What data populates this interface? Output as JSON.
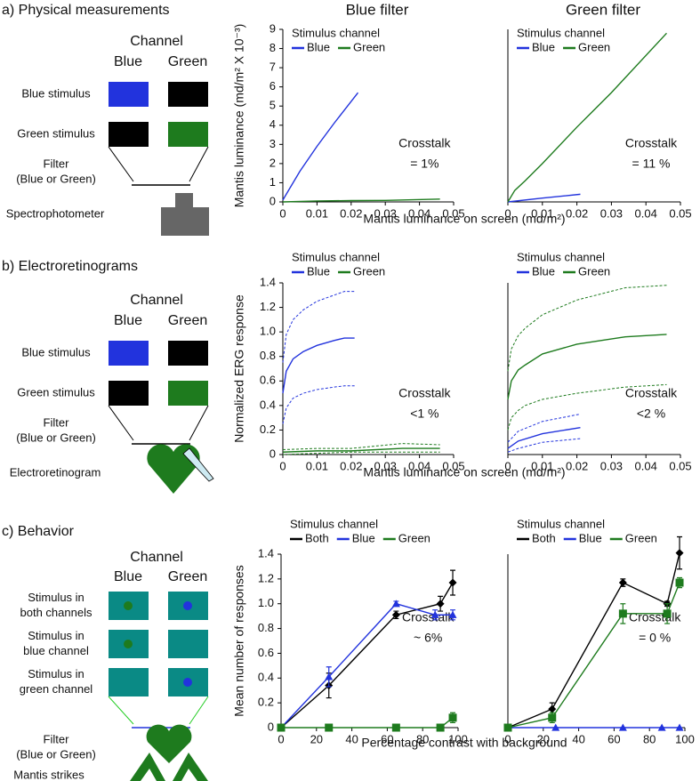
{
  "panels": [
    {
      "label": "a) Physical measurements",
      "channel": "Channel",
      "columns": [
        "Blue",
        "Green"
      ],
      "rows": [
        [
          "Blue stimulus"
        ],
        [
          "Green stimulus"
        ]
      ],
      "filter": [
        "Filter",
        "(Blue or Green)"
      ],
      "device": "Spectrophotometer"
    },
    {
      "label": "b) Electroretinograms",
      "channel": "Channel",
      "columns": [
        "Blue",
        "Green"
      ],
      "rows": [
        [
          "Blue stimulus"
        ],
        [
          "Green stimulus"
        ]
      ],
      "filter": [
        "Filter",
        "(Blue or Green)"
      ],
      "device": "Electroretinogram"
    },
    {
      "label": "c) Behavior",
      "channel": "Channel",
      "columns": [
        "Blue",
        "Green"
      ],
      "rows": [
        [
          "Stimulus in",
          "both channels"
        ],
        [
          "Stimulus in",
          "blue channel"
        ],
        [
          "Stimulus in",
          "green channel"
        ]
      ],
      "filter": [
        "Filter",
        "(Blue or Green)"
      ],
      "device": "Mantis strikes"
    }
  ],
  "chart_data": [
    {
      "type": "line",
      "title": "Blue filter",
      "title_color": "#2233dd",
      "ylabel": "Mantis luminance (md/m² X 10⁻³)",
      "xlabel": "Mantis luminance on screen (md/m²)",
      "xlim": [
        0,
        0.05
      ],
      "xticks": [
        0,
        0.01,
        0.02,
        0.03,
        0.04,
        0.05
      ],
      "ylim": [
        0,
        9
      ],
      "yticks": [
        0,
        1,
        2,
        3,
        4,
        5,
        6,
        7,
        8,
        9
      ],
      "legend_title": "Stimulus channel",
      "annotation": [
        "Crosstalk",
        "= 1%"
      ],
      "series": [
        {
          "name": "Blue",
          "color": "#2233dd",
          "x": [
            0,
            0.002,
            0.005,
            0.01,
            0.015,
            0.022
          ],
          "values": [
            0.1,
            0.7,
            1.6,
            2.9,
            4.1,
            5.7
          ]
        },
        {
          "name": "Green",
          "color": "#1e7b1e",
          "x": [
            0,
            0.01,
            0.02,
            0.03,
            0.046
          ],
          "values": [
            0,
            0.05,
            0.07,
            0.08,
            0.15
          ]
        }
      ]
    },
    {
      "type": "line",
      "title": "Green filter",
      "title_color": "#1e7b1e",
      "xlim": [
        0,
        0.05
      ],
      "xticks": [
        0,
        0.01,
        0.02,
        0.03,
        0.04,
        0.05
      ],
      "ylim": [
        0,
        9
      ],
      "legend_title": "Stimulus channel",
      "annotation": [
        "Crosstalk",
        "= 11 %"
      ],
      "series": [
        {
          "name": "Blue",
          "color": "#2233dd",
          "x": [
            0,
            0.01,
            0.021
          ],
          "values": [
            0,
            0.2,
            0.4
          ]
        },
        {
          "name": "Green",
          "color": "#1e7b1e",
          "x": [
            0,
            0.002,
            0.005,
            0.01,
            0.02,
            0.03,
            0.046
          ],
          "values": [
            0,
            0.6,
            1.1,
            2.0,
            3.9,
            5.7,
            8.8
          ]
        }
      ]
    },
    {
      "type": "line",
      "ylabel": "Normalized ERG response",
      "xlabel": "Mantis luminance on screen (md/m²)",
      "xlim": [
        0,
        0.05
      ],
      "xticks": [
        0,
        0.01,
        0.02,
        0.03,
        0.04,
        0.05
      ],
      "ylim": [
        0,
        1.4
      ],
      "yticks": [
        0,
        0.2,
        0.4,
        0.6,
        0.8,
        {
          "value": 1,
          "label": "1.0"
        },
        1.2,
        1.4
      ],
      "legend_title": "Stimulus channel",
      "annotation": [
        "Crosstalk",
        "<1 %"
      ],
      "series": [
        {
          "name": "Blue",
          "color": "#2233dd",
          "x": [
            0,
            0.001,
            0.003,
            0.006,
            0.01,
            0.015,
            0.018,
            0.021
          ],
          "values": [
            0.5,
            0.68,
            0.78,
            0.84,
            0.89,
            0.93,
            0.95,
            0.95
          ],
          "upper": [
            0.75,
            0.98,
            1.1,
            1.18,
            1.25,
            1.3,
            1.33,
            1.33
          ],
          "lower": [
            0.25,
            0.38,
            0.46,
            0.5,
            0.53,
            0.55,
            0.56,
            0.56
          ]
        },
        {
          "name": "Green",
          "color": "#1e7b1e",
          "x": [
            0,
            0.01,
            0.02,
            0.035,
            0.046
          ],
          "values": [
            0.02,
            0.03,
            0.03,
            0.05,
            0.05
          ],
          "upper": [
            0.04,
            0.05,
            0.05,
            0.09,
            0.08
          ],
          "lower": [
            0,
            0.01,
            0.02,
            0.02,
            0.02
          ]
        }
      ]
    },
    {
      "type": "line",
      "xlim": [
        0,
        0.05
      ],
      "xticks": [
        0,
        0.01,
        0.02,
        0.03,
        0.04,
        0.05
      ],
      "ylim": [
        0,
        1.4
      ],
      "legend_title": "Stimulus channel",
      "annotation": [
        "Crosstalk",
        "<2 %"
      ],
      "series": [
        {
          "name": "Blue",
          "color": "#2233dd",
          "x": [
            0,
            0.003,
            0.01,
            0.021
          ],
          "values": [
            0.05,
            0.11,
            0.17,
            0.22
          ],
          "upper": [
            0.1,
            0.19,
            0.27,
            0.33
          ],
          "lower": [
            0.02,
            0.05,
            0.1,
            0.13
          ]
        },
        {
          "name": "Green",
          "color": "#1e7b1e",
          "x": [
            0,
            0.001,
            0.003,
            0.005,
            0.01,
            0.02,
            0.034,
            0.046
          ],
          "values": [
            0.45,
            0.6,
            0.69,
            0.73,
            0.82,
            0.9,
            0.96,
            0.98
          ],
          "upper": [
            0.68,
            0.86,
            0.97,
            1.03,
            1.14,
            1.26,
            1.36,
            1.38
          ],
          "lower": [
            0.2,
            0.3,
            0.36,
            0.4,
            0.45,
            0.5,
            0.55,
            0.57
          ]
        }
      ]
    },
    {
      "type": "line",
      "ylabel": "Mean number of responses",
      "xlabel": "Percentage contrast with background",
      "xlim": [
        0,
        100
      ],
      "xticks": [
        0,
        20,
        40,
        60,
        80,
        100
      ],
      "ylim": [
        0,
        1.4
      ],
      "yticks": [
        0,
        0.2,
        0.4,
        0.6,
        0.8,
        {
          "value": 1,
          "label": "1.0"
        },
        1.2,
        1.4
      ],
      "legend_title": "Stimulus channel",
      "annotation": [
        "Crosstalk",
        "~ 6%"
      ],
      "series": [
        {
          "name": "Both",
          "color": "#000000",
          "marker": "diamond",
          "x": [
            0,
            27,
            65,
            90,
            97
          ],
          "values": [
            0,
            0.34,
            0.91,
            1.0,
            1.17
          ],
          "errors": [
            0,
            0.1,
            0.03,
            0.06,
            0.1
          ]
        },
        {
          "name": "Blue",
          "color": "#2233dd",
          "marker": "triangle",
          "x": [
            0,
            27,
            65,
            87,
            97
          ],
          "values": [
            0,
            0.41,
            1.0,
            0.91,
            0.91
          ],
          "errors": [
            0,
            0.08,
            0.02,
            0.04,
            0.04
          ]
        },
        {
          "name": "Green",
          "color": "#1e7b1e",
          "marker": "square",
          "x": [
            0,
            27,
            65,
            90,
            97
          ],
          "values": [
            0,
            0,
            0,
            0,
            0.08
          ],
          "errors": [
            0,
            0,
            0,
            0,
            0.04
          ]
        }
      ]
    },
    {
      "type": "line",
      "xlim": [
        0,
        100
      ],
      "xticks": [
        0,
        20,
        40,
        60,
        80,
        100
      ],
      "ylim": [
        0,
        1.4
      ],
      "legend_title": "Stimulus channel",
      "annotation": [
        "Crosstalk",
        "= 0 %"
      ],
      "series": [
        {
          "name": "Both",
          "color": "#000000",
          "marker": "diamond",
          "x": [
            0,
            25,
            65,
            90,
            97
          ],
          "values": [
            0,
            0.15,
            1.17,
            1.0,
            1.41
          ],
          "errors": [
            0,
            0.05,
            0.03,
            0.02,
            0.13
          ]
        },
        {
          "name": "Blue",
          "color": "#2233dd",
          "marker": "triangle",
          "x": [
            0,
            27,
            65,
            87,
            97
          ],
          "values": [
            0,
            0,
            0,
            0,
            0
          ],
          "errors": [
            0,
            0,
            0,
            0,
            0
          ]
        },
        {
          "name": "Green",
          "color": "#1e7b1e",
          "marker": "square",
          "x": [
            0,
            25,
            65,
            90,
            97
          ],
          "values": [
            0,
            0.08,
            0.92,
            0.92,
            1.17
          ],
          "errors": [
            0,
            0.04,
            0.08,
            0.08,
            0.04
          ]
        }
      ]
    }
  ]
}
